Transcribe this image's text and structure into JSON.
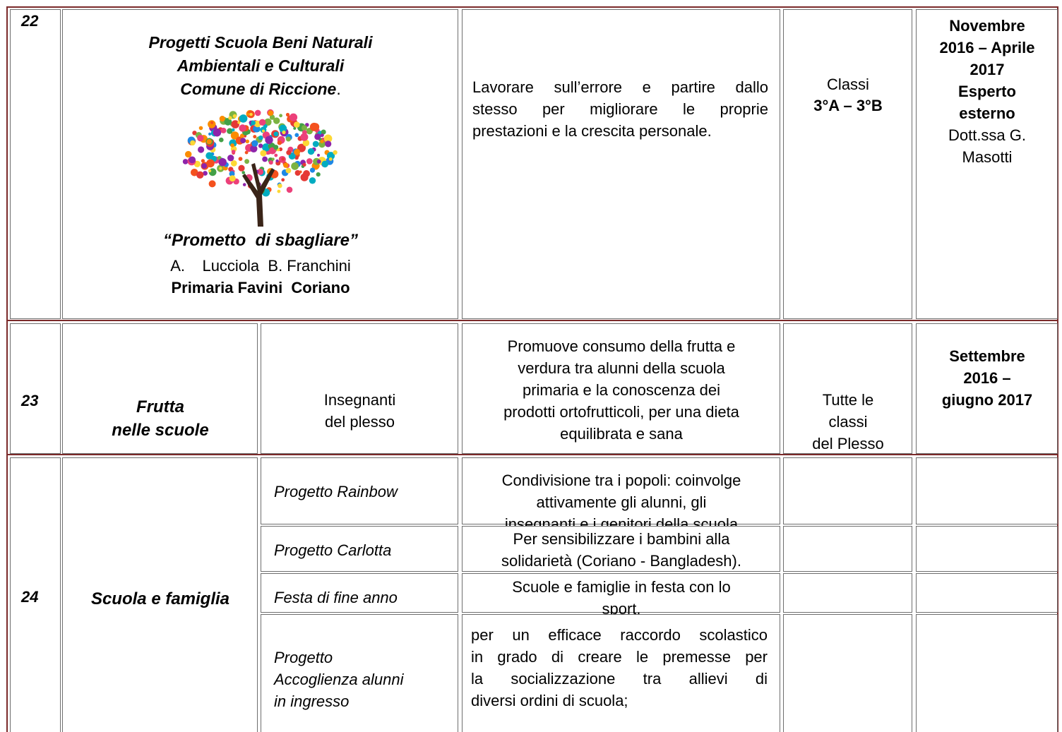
{
  "rows": [
    {
      "number": "22",
      "title": [
        "Progetti Scuola Beni Naturali",
        "Ambientali e Culturali",
        "Comune di Riccione"
      ],
      "title_end": ".",
      "subtitle": "“Prometto  di sbagliare”",
      "authors": "A.    Lucciola  B. Franchini",
      "school": "Primaria Favini  Coriano",
      "description": [
        "Lavorare sull’errore e partire dallo",
        "stesso per migliorare le proprie",
        "prestazioni e la crescita personale."
      ],
      "classes": [
        "Classi",
        "3°A – 3°B"
      ],
      "period": [
        "Novembre",
        "2016 – Aprile",
        "2017",
        "Esperto",
        "esterno"
      ],
      "expert": [
        "Dott.ssa G.",
        "Masotti"
      ]
    },
    {
      "number": "23",
      "title": [
        "Frutta",
        "nelle scuole"
      ],
      "responsible": [
        "Insegnanti",
        "del plesso"
      ],
      "description": [
        "Promuove consumo della frutta e",
        "verdura tra alunni della scuola",
        "primaria e la conoscenza dei",
        "prodotti ortofrutticoli, per una dieta",
        "equilibrata e sana"
      ],
      "classes": [
        "Tutte le",
        "classi",
        "del Plesso"
      ],
      "period": [
        "Settembre",
        "2016 –",
        "giugno 2017"
      ]
    },
    {
      "number": "24",
      "title": "Scuola e famiglia",
      "projects": [
        {
          "name": [
            "Progetto Rainbow"
          ],
          "description": [
            "Condivisione tra i popoli: coinvolge",
            "attivamente gli alunni, gli",
            "insegnanti e i genitori della scuola"
          ]
        },
        {
          "name": [
            "Progetto Carlotta"
          ],
          "description": [
            "Per sensibilizzare i bambini alla",
            "solidarietà (Coriano - Bangladesh)."
          ]
        },
        {
          "name": [
            "Festa di fine anno"
          ],
          "description": [
            "Scuole e famiglie in festa con lo",
            "sport."
          ]
        },
        {
          "name": [
            "Progetto",
            "Accoglienza alunni",
            "in ingresso"
          ],
          "description": [
            "per un efficace raccordo scolastico",
            "in grado di creare le premesse per",
            "la socializzazione tra allievi di",
            "diversi ordini di scuola;"
          ]
        }
      ]
    }
  ]
}
